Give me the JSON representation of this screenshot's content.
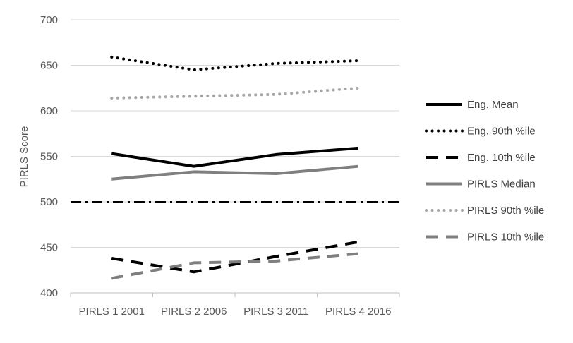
{
  "chart_data": {
    "type": "line",
    "title": "",
    "xlabel": "",
    "ylabel": "PIRLS Score",
    "ylim": [
      400,
      700
    ],
    "yticks": [
      400,
      450,
      500,
      550,
      600,
      650,
      700
    ],
    "grid": "horizontal",
    "legend_position": "right",
    "categories": [
      "PIRLS 1 2001",
      "PIRLS 2 2006",
      "PIRLS 3 2011",
      "PIRLS 4  2016"
    ],
    "series": [
      {
        "name": "Eng. Mean",
        "values": [
          553,
          539,
          552,
          559
        ],
        "color": "#000000",
        "style": "solid"
      },
      {
        "name": "Eng.  90th %ile",
        "values": [
          659,
          645,
          652,
          655
        ],
        "color": "#000000",
        "style": "dotted"
      },
      {
        "name": "Eng.  10th %ile",
        "values": [
          438,
          423,
          440,
          456
        ],
        "color": "#000000",
        "style": "dashed"
      },
      {
        "name": "PIRLS Median",
        "values": [
          525,
          533,
          531,
          539
        ],
        "color": "#7f7f7f",
        "style": "solid"
      },
      {
        "name": "PIRLS 90th %ile",
        "values": [
          614,
          616,
          618,
          625
        ],
        "color": "#a6a6a6",
        "style": "dotted"
      },
      {
        "name": "PIRLS 10th %ile",
        "values": [
          416,
          433,
          435,
          443
        ],
        "color": "#7f7f7f",
        "style": "dashed"
      }
    ],
    "reference_line": {
      "value": 500,
      "color": "#000000",
      "style": "dash-dot"
    }
  }
}
